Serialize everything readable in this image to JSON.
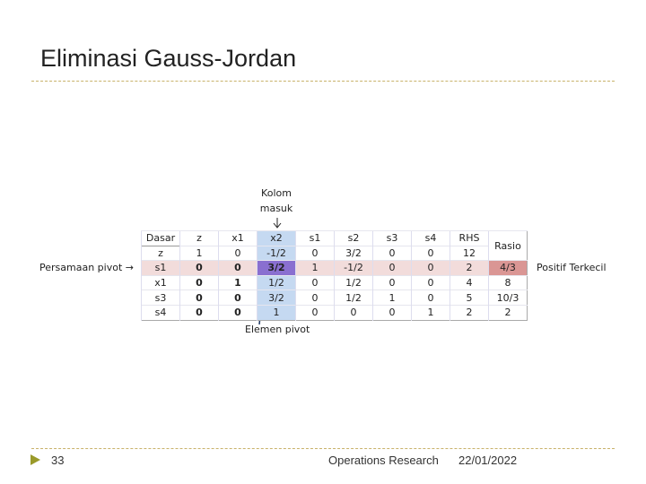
{
  "header": {
    "title": "Eliminasi Gauss-Jordan"
  },
  "table": {
    "columns": [
      "Dasar",
      "z",
      "x1",
      "x2",
      "s1",
      "s2",
      "s3",
      "s4",
      "RHS",
      "Rasio"
    ],
    "rows": [
      [
        "z",
        1,
        0,
        "-1/2",
        0,
        "3/2",
        0,
        0,
        12
      ],
      [
        "s1",
        0,
        0,
        "3/2",
        1,
        "-1/2",
        0,
        0,
        2,
        "4/3"
      ],
      [
        "x1",
        0,
        1,
        "1/2",
        0,
        "1/2",
        0,
        0,
        4,
        8
      ],
      [
        "s3",
        0,
        0,
        "3/2",
        0,
        "1/2",
        1,
        0,
        5,
        "10/3"
      ],
      [
        "s4",
        0,
        0,
        1,
        0,
        0,
        0,
        1,
        2,
        2
      ]
    ]
  },
  "annotations": {
    "entering_column": [
      "Kolom",
      "masuk"
    ],
    "pivot_row": "Persamaan pivot →",
    "smallest": "Positif Terkecil",
    "pivot_element": "Elemen pivot"
  },
  "footer": {
    "page": "33",
    "course": "Operations Research",
    "date": "22/01/2022"
  }
}
